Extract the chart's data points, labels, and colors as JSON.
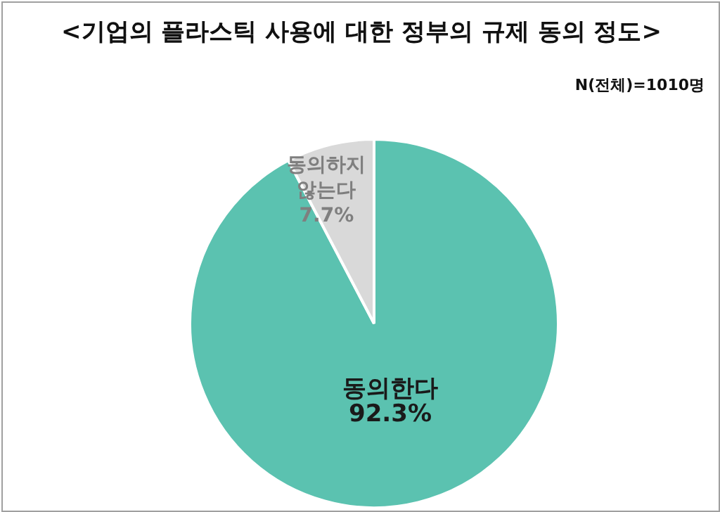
{
  "chart_data": {
    "type": "pie",
    "title": "<기업의 플라스틱 사용에 대한 정부의 규제 동의 정도>",
    "annotations": [
      "N(전체)=1010명"
    ],
    "categories": [
      "동의한다",
      "동의하지 않는다"
    ],
    "values": [
      92.3,
      7.7
    ],
    "colors": [
      "#5bc2b0",
      "#d9d9d9"
    ],
    "value_labels": [
      "92.3%",
      "7.7%"
    ]
  }
}
